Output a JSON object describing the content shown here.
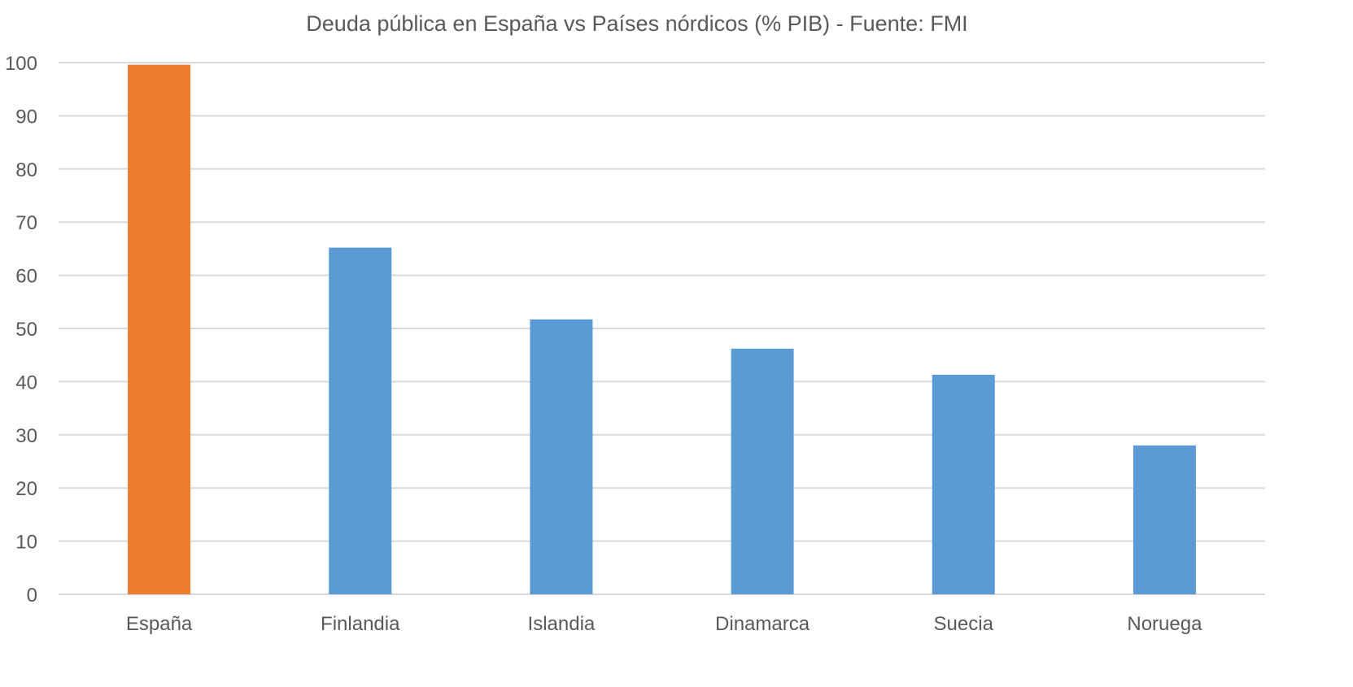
{
  "chart_data": {
    "type": "bar",
    "title": "Deuda pública en España vs Países nórdicos (% PIB) - Fuente: FMI",
    "categories": [
      "España",
      "Finlandia",
      "Islandia",
      "Dinamarca",
      "Suecia",
      "Noruega"
    ],
    "values": [
      99.6,
      65.2,
      51.7,
      46.2,
      41.3,
      28.0
    ],
    "bar_colors": [
      "#ED7D31",
      "#5B9BD5",
      "#5B9BD5",
      "#5B9BD5",
      "#5B9BD5",
      "#5B9BD5"
    ],
    "xlabel": "",
    "ylabel": "",
    "ylim": [
      0,
      100
    ],
    "yticks": [
      0,
      10,
      20,
      30,
      40,
      50,
      60,
      70,
      80,
      90,
      100
    ],
    "grid": true,
    "legend": "none"
  }
}
